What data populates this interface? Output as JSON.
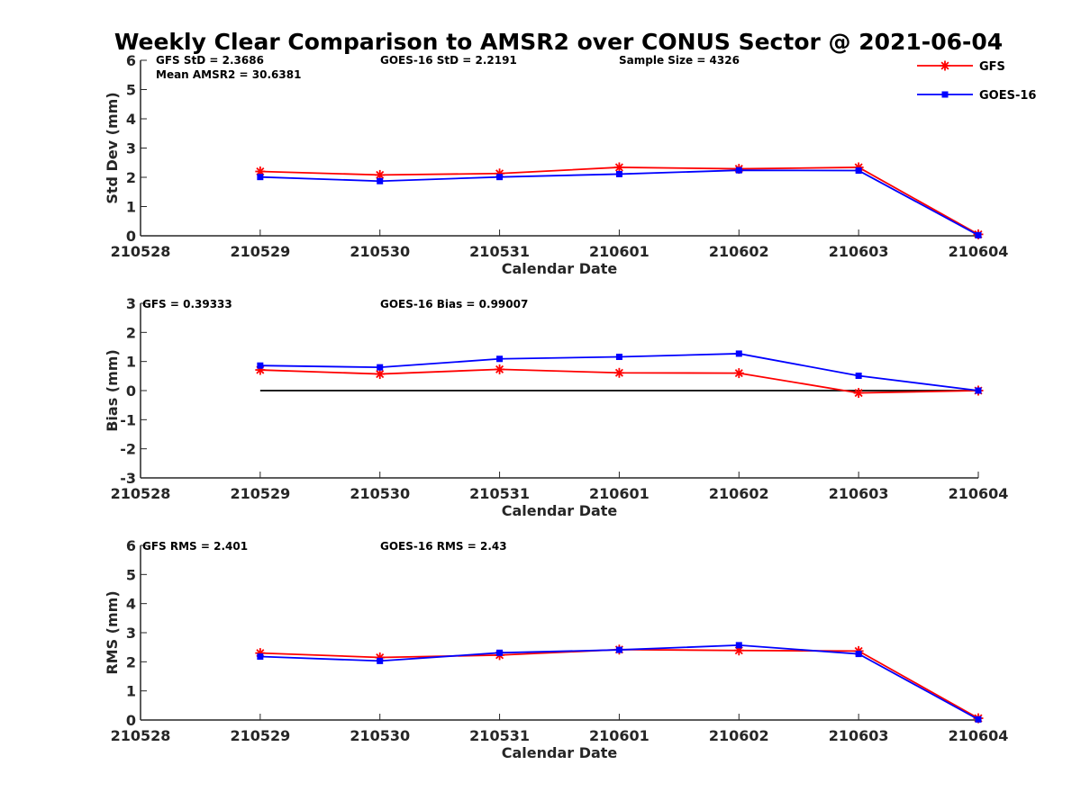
{
  "title": "Weekly Clear Comparison to AMSR2 over CONUS Sector @ 2021-06-04",
  "legend": {
    "placement": "top-right",
    "entries": [
      {
        "name": "GFS",
        "color": "#ff0000",
        "marker": "asterisk"
      },
      {
        "name": "GOES-16",
        "color": "#0000ff",
        "marker": "square"
      }
    ]
  },
  "chart_data": [
    {
      "type": "line",
      "xlabel": "Calendar Date",
      "ylabel": "Std Dev (mm)",
      "x": [
        "210528",
        "210529",
        "210530",
        "210531",
        "210601",
        "210602",
        "210603",
        "210604"
      ],
      "ylim": [
        0,
        6
      ],
      "yticks": [
        0,
        1,
        2,
        3,
        4,
        5,
        6
      ],
      "annotations": [
        "GFS StD = 2.3686",
        "GOES-16 StD = 2.2191",
        "Sample Size = 4326",
        "Mean AMSR2 = 30.6381"
      ],
      "zero_line": false,
      "series": [
        {
          "name": "GFS",
          "color": "#ff0000",
          "marker": "asterisk",
          "points": [
            [
              "210529",
              2.2
            ],
            [
              "210530",
              2.08
            ],
            [
              "210531",
              2.13
            ],
            [
              "210601",
              2.34
            ],
            [
              "210602",
              2.29
            ],
            [
              "210603",
              2.34
            ],
            [
              "210604",
              0.05
            ]
          ]
        },
        {
          "name": "GOES-16",
          "color": "#0000ff",
          "marker": "square",
          "points": [
            [
              "210529",
              2.01
            ],
            [
              "210530",
              1.87
            ],
            [
              "210531",
              2.01
            ],
            [
              "210601",
              2.11
            ],
            [
              "210602",
              2.24
            ],
            [
              "210603",
              2.23
            ],
            [
              "210604",
              0.02
            ]
          ]
        }
      ]
    },
    {
      "type": "line",
      "xlabel": "Calendar Date",
      "ylabel": "Bias (mm)",
      "x": [
        "210528",
        "210529",
        "210530",
        "210531",
        "210601",
        "210602",
        "210603",
        "210604"
      ],
      "ylim": [
        -3,
        3
      ],
      "yticks": [
        -3,
        -2,
        -1,
        0,
        1,
        2,
        3
      ],
      "annotations": [
        "GFS = 0.39333",
        "GOES-16 Bias  = 0.99007"
      ],
      "zero_line": true,
      "series": [
        {
          "name": "GFS",
          "color": "#ff0000",
          "marker": "asterisk",
          "points": [
            [
              "210529",
              0.71
            ],
            [
              "210530",
              0.57
            ],
            [
              "210531",
              0.73
            ],
            [
              "210601",
              0.61
            ],
            [
              "210602",
              0.6
            ],
            [
              "210603",
              -0.08
            ],
            [
              "210604",
              0.0
            ]
          ]
        },
        {
          "name": "GOES-16",
          "color": "#0000ff",
          "marker": "square",
          "points": [
            [
              "210529",
              0.86
            ],
            [
              "210530",
              0.8
            ],
            [
              "210531",
              1.09
            ],
            [
              "210601",
              1.16
            ],
            [
              "210602",
              1.27
            ],
            [
              "210603",
              0.51
            ],
            [
              "210604",
              0.0
            ]
          ]
        }
      ]
    },
    {
      "type": "line",
      "xlabel": "Calendar Date",
      "ylabel": "RMS (mm)",
      "x": [
        "210528",
        "210529",
        "210530",
        "210531",
        "210601",
        "210602",
        "210603",
        "210604"
      ],
      "ylim": [
        0,
        6
      ],
      "yticks": [
        0,
        1,
        2,
        3,
        4,
        5,
        6
      ],
      "annotations": [
        "GFS RMS = 2.401",
        "GOES-16 RMS = 2.43"
      ],
      "zero_line": false,
      "series": [
        {
          "name": "GFS",
          "color": "#ff0000",
          "marker": "asterisk",
          "points": [
            [
              "210529",
              2.3
            ],
            [
              "210530",
              2.15
            ],
            [
              "210531",
              2.23
            ],
            [
              "210601",
              2.42
            ],
            [
              "210602",
              2.39
            ],
            [
              "210603",
              2.37
            ],
            [
              "210604",
              0.06
            ]
          ]
        },
        {
          "name": "GOES-16",
          "color": "#0000ff",
          "marker": "square",
          "points": [
            [
              "210529",
              2.18
            ],
            [
              "210530",
              2.03
            ],
            [
              "210531",
              2.31
            ],
            [
              "210601",
              2.41
            ],
            [
              "210602",
              2.57
            ],
            [
              "210603",
              2.27
            ],
            [
              "210604",
              0.02
            ]
          ]
        }
      ]
    }
  ]
}
